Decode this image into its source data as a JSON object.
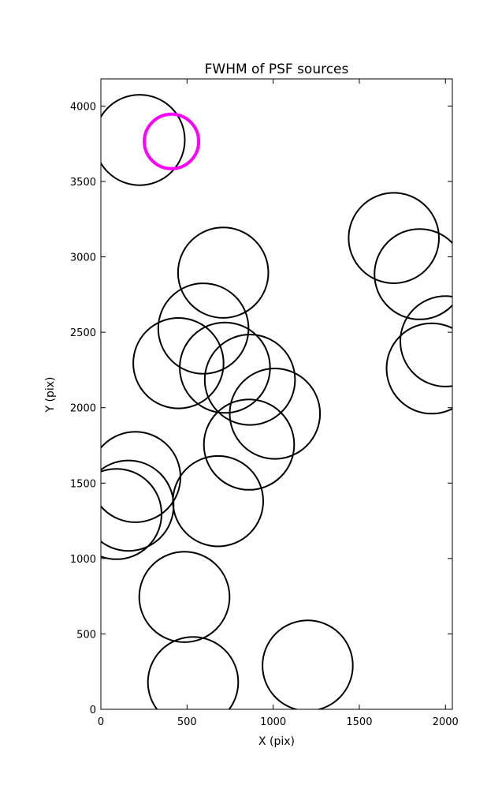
{
  "chart_data": {
    "type": "scatter",
    "title": "FWHM of PSF sources",
    "xlabel": "X (pix)",
    "ylabel": "Y (pix)",
    "xlim": [
      0,
      2040
    ],
    "ylim": [
      0,
      4180
    ],
    "x_ticks": [
      0,
      500,
      1000,
      1500,
      2000
    ],
    "y_ticks": [
      0,
      500,
      1000,
      1500,
      2000,
      2500,
      3000,
      3500,
      4000
    ],
    "grid": false,
    "legend": "none",
    "series": [
      {
        "color": "#000000",
        "marker": "open-circle",
        "points": [
          {
            "x": 225,
            "y": 3775,
            "r": 262
          },
          {
            "x": 1700,
            "y": 3125,
            "r": 262
          },
          {
            "x": 1850,
            "y": 2885,
            "r": 262
          },
          {
            "x": 710,
            "y": 2895,
            "r": 262
          },
          {
            "x": 595,
            "y": 2525,
            "r": 262
          },
          {
            "x": 2000,
            "y": 2440,
            "r": 262
          },
          {
            "x": 450,
            "y": 2295,
            "r": 262
          },
          {
            "x": 720,
            "y": 2265,
            "r": 262
          },
          {
            "x": 865,
            "y": 2185,
            "r": 262
          },
          {
            "x": 1920,
            "y": 2260,
            "r": 262
          },
          {
            "x": 1010,
            "y": 1960,
            "r": 262
          },
          {
            "x": 860,
            "y": 1755,
            "r": 262
          },
          {
            "x": 200,
            "y": 1540,
            "r": 262
          },
          {
            "x": 160,
            "y": 1350,
            "r": 262
          },
          {
            "x": 90,
            "y": 1295,
            "r": 262
          },
          {
            "x": 680,
            "y": 1380,
            "r": 262
          },
          {
            "x": 485,
            "y": 745,
            "r": 262
          },
          {
            "x": 535,
            "y": 180,
            "r": 262
          },
          {
            "x": 1200,
            "y": 290,
            "r": 262
          }
        ]
      },
      {
        "color": "#ff00ff",
        "marker": "open-circle",
        "points": [
          {
            "x": 410,
            "y": 3765,
            "r": 158
          }
        ]
      }
    ]
  }
}
